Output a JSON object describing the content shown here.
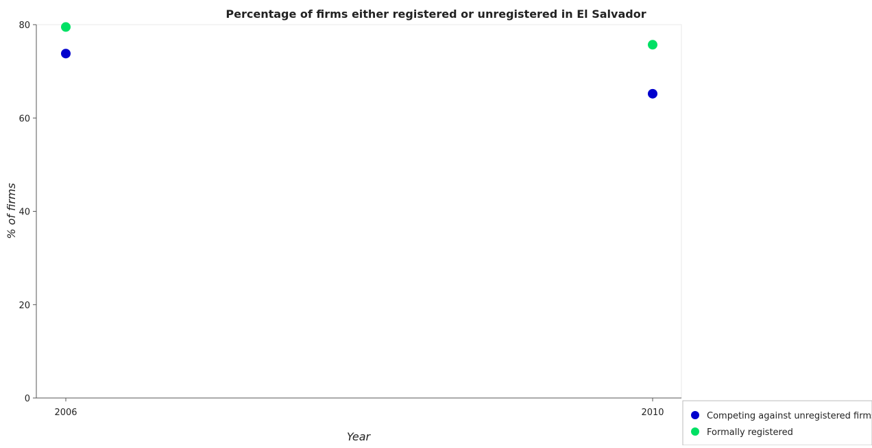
{
  "chart_data": {
    "type": "scatter",
    "title": "Percentage of firms either registered or unregistered in El Salvador",
    "xlabel": "Year",
    "ylabel": "% of firms",
    "x": [
      "2006",
      "2010"
    ],
    "ylim": [
      0,
      80
    ],
    "yticks": [
      0,
      20,
      40,
      60,
      80
    ],
    "grid": false,
    "legend_position": "bottom-right",
    "series": [
      {
        "name": "Competing against unregistered firms",
        "color": "#0000cd",
        "values": [
          73.8,
          65.2
        ]
      },
      {
        "name": "Formally registered",
        "color": "#00e064",
        "values": [
          79.5,
          75.7
        ]
      }
    ]
  }
}
